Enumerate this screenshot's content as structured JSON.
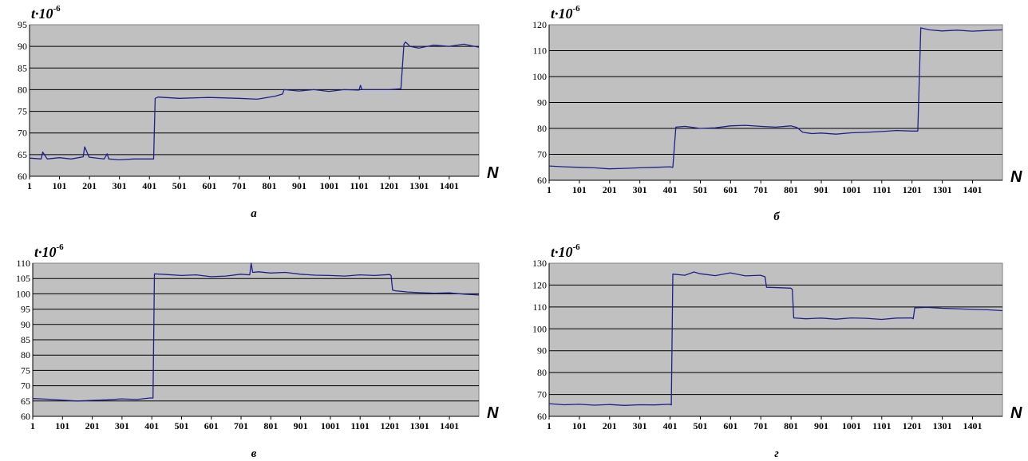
{
  "chart_data": [
    {
      "type": "line",
      "ylabel": "t·10",
      "ylabel_exp": "-6",
      "xlabel": "N",
      "caption": "а",
      "ylim": [
        60,
        95
      ],
      "yticks": [
        60,
        65,
        70,
        75,
        80,
        85,
        90,
        95
      ],
      "xlim": [
        1,
        1500
      ],
      "xticks": [
        1,
        101,
        201,
        301,
        401,
        501,
        601,
        701,
        801,
        901,
        1001,
        1101,
        1201,
        1301,
        1401
      ],
      "grid": true,
      "plot_background": "#c0c0c0",
      "line_color": "#1f1f8f",
      "series": [
        {
          "x": [
            1,
            40,
            45,
            60,
            100,
            140,
            180,
            185,
            200,
            250,
            260,
            265,
            300,
            350,
            400,
            415,
            420,
            430,
            500,
            600,
            700,
            760,
            820,
            845,
            850,
            900,
            950,
            1000,
            1050,
            1100,
            1105,
            1110,
            1150,
            1200,
            1240,
            1250,
            1255,
            1260,
            1270,
            1300,
            1350,
            1400,
            1450,
            1500
          ],
          "y": [
            64.2,
            64,
            65.6,
            64,
            64.3,
            64,
            64.5,
            66.8,
            64.4,
            64,
            65.2,
            64,
            63.8,
            64,
            64,
            64,
            78,
            78.3,
            78,
            78.2,
            78,
            77.8,
            78.5,
            79,
            80,
            79.7,
            80,
            79.6,
            80,
            79.9,
            81,
            80,
            80,
            80,
            80.2,
            90.5,
            91,
            90.7,
            90,
            89.6,
            90.3,
            90,
            90.5,
            89.8
          ]
        }
      ]
    },
    {
      "type": "line",
      "ylabel": "t·10",
      "ylabel_exp": "-6",
      "xlabel": "N",
      "caption": "б",
      "ylim": [
        60,
        120
      ],
      "yticks": [
        60,
        70,
        80,
        90,
        100,
        110,
        120
      ],
      "xlim": [
        1,
        1500
      ],
      "xticks": [
        1,
        101,
        201,
        301,
        401,
        501,
        601,
        701,
        801,
        901,
        1001,
        1101,
        1201,
        1301,
        1401
      ],
      "grid": true,
      "plot_background": "#c0c0c0",
      "line_color": "#1f1f8f",
      "series": [
        {
          "x": [
            1,
            50,
            100,
            150,
            200,
            250,
            300,
            350,
            400,
            410,
            420,
            450,
            500,
            550,
            600,
            650,
            700,
            750,
            800,
            820,
            840,
            870,
            900,
            950,
            1000,
            1050,
            1100,
            1150,
            1200,
            1220,
            1230,
            1240,
            1260,
            1300,
            1350,
            1400,
            1450,
            1500
          ],
          "y": [
            65.5,
            65.2,
            65,
            64.8,
            64.4,
            64.6,
            64.8,
            65,
            65.2,
            65,
            80.5,
            80.8,
            80,
            80.2,
            81,
            81.2,
            80.8,
            80.5,
            81,
            80.4,
            78.5,
            78,
            78.2,
            77.8,
            78.3,
            78.5,
            78.8,
            79.2,
            79,
            79,
            118.8,
            118.5,
            118,
            117.6,
            117.9,
            117.5,
            117.8,
            118
          ]
        }
      ]
    },
    {
      "type": "line",
      "ylabel": "t·10",
      "ylabel_exp": "-6",
      "xlabel": "N",
      "caption": "в",
      "ylim": [
        60,
        110
      ],
      "yticks": [
        60,
        65,
        70,
        75,
        80,
        85,
        90,
        95,
        100,
        105,
        110
      ],
      "xlim": [
        1,
        1500
      ],
      "xticks": [
        1,
        101,
        201,
        301,
        401,
        501,
        601,
        701,
        801,
        901,
        1001,
        1101,
        1201,
        1301,
        1401
      ],
      "grid": true,
      "plot_background": "#c0c0c0",
      "line_color": "#1f1f8f",
      "series": [
        {
          "x": [
            1,
            50,
            100,
            150,
            200,
            250,
            300,
            350,
            395,
            405,
            410,
            450,
            500,
            550,
            600,
            650,
            700,
            730,
            735,
            740,
            760,
            800,
            850,
            900,
            950,
            1000,
            1050,
            1100,
            1150,
            1200,
            1205,
            1210,
            1220,
            1260,
            1300,
            1350,
            1400,
            1450,
            1500
          ],
          "y": [
            65.8,
            65.6,
            65.3,
            65,
            65.2,
            65.4,
            65.7,
            65.5,
            66,
            66,
            106.5,
            106.3,
            106,
            106.2,
            105.6,
            105.8,
            106.4,
            106.2,
            110,
            107,
            107.2,
            106.8,
            107,
            106.4,
            106.1,
            106,
            105.8,
            106.2,
            106,
            106.3,
            106,
            101.2,
            101,
            100.6,
            100.4,
            100.2,
            100.3,
            99.9,
            99.6
          ]
        }
      ]
    },
    {
      "type": "line",
      "ylabel": "t·10",
      "ylabel_exp": "-6",
      "xlabel": "N",
      "caption": "г",
      "ylim": [
        60,
        130
      ],
      "yticks": [
        60,
        70,
        80,
        90,
        100,
        110,
        120,
        130
      ],
      "xlim": [
        1,
        1500
      ],
      "xticks": [
        1,
        101,
        201,
        301,
        401,
        501,
        601,
        701,
        801,
        901,
        1001,
        1101,
        1201,
        1301,
        1401
      ],
      "grid": true,
      "plot_background": "#c0c0c0",
      "line_color": "#1f1f8f",
      "series": [
        {
          "x": [
            1,
            50,
            100,
            150,
            200,
            250,
            300,
            350,
            400,
            405,
            410,
            450,
            480,
            500,
            550,
            600,
            650,
            700,
            715,
            720,
            760,
            800,
            805,
            810,
            850,
            900,
            950,
            1000,
            1050,
            1100,
            1150,
            1200,
            1205,
            1210,
            1250,
            1300,
            1350,
            1400,
            1450,
            1500
          ],
          "y": [
            65.8,
            65.3,
            65.5,
            65.1,
            65.4,
            65,
            65.3,
            65.2,
            65.5,
            65.2,
            125,
            124.5,
            126,
            125.2,
            124.3,
            125.6,
            124.2,
            124.5,
            123.8,
            119,
            118.8,
            118.6,
            118,
            105,
            104.6,
            104.9,
            104.4,
            105,
            104.8,
            104.3,
            104.9,
            105,
            104.6,
            109.6,
            109.8,
            109.4,
            109.2,
            108.9,
            108.7,
            108.3
          ]
        }
      ]
    }
  ]
}
